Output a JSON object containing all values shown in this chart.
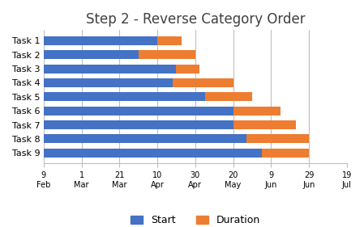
{
  "title": "Step 2 - Reverse Category Order",
  "tasks": [
    "Task 1",
    "Task 2",
    "Task 3",
    "Task 4",
    "Task 5",
    "Task 6",
    "Task 7",
    "Task 8",
    "Task 9"
  ],
  "blue_ends": [
    60,
    50,
    70,
    68,
    85,
    100,
    100,
    107,
    115
  ],
  "orange_ends": [
    73,
    80,
    82,
    100,
    110,
    125,
    133,
    140,
    140
  ],
  "x_ticks": [
    0,
    20,
    40,
    60,
    80,
    100,
    120,
    140,
    160
  ],
  "x_tick_labels": [
    "9\nFeb",
    "1\nMar",
    "21\nMar",
    "10\nApr",
    "30\nApr",
    "20\nMay",
    "9\nJun",
    "29\nJun",
    "19\nJul"
  ],
  "xlim": [
    0,
    160
  ],
  "bar_color_blue": "#4472C4",
  "bar_color_orange": "#ED7D31",
  "legend_labels": [
    "Start",
    "Duration"
  ],
  "background_color": "#FFFFFF",
  "grid_color": "#BFBFBF",
  "title_fontsize": 12,
  "axis_fontsize": 8,
  "legend_fontsize": 9,
  "bar_height": 0.65
}
